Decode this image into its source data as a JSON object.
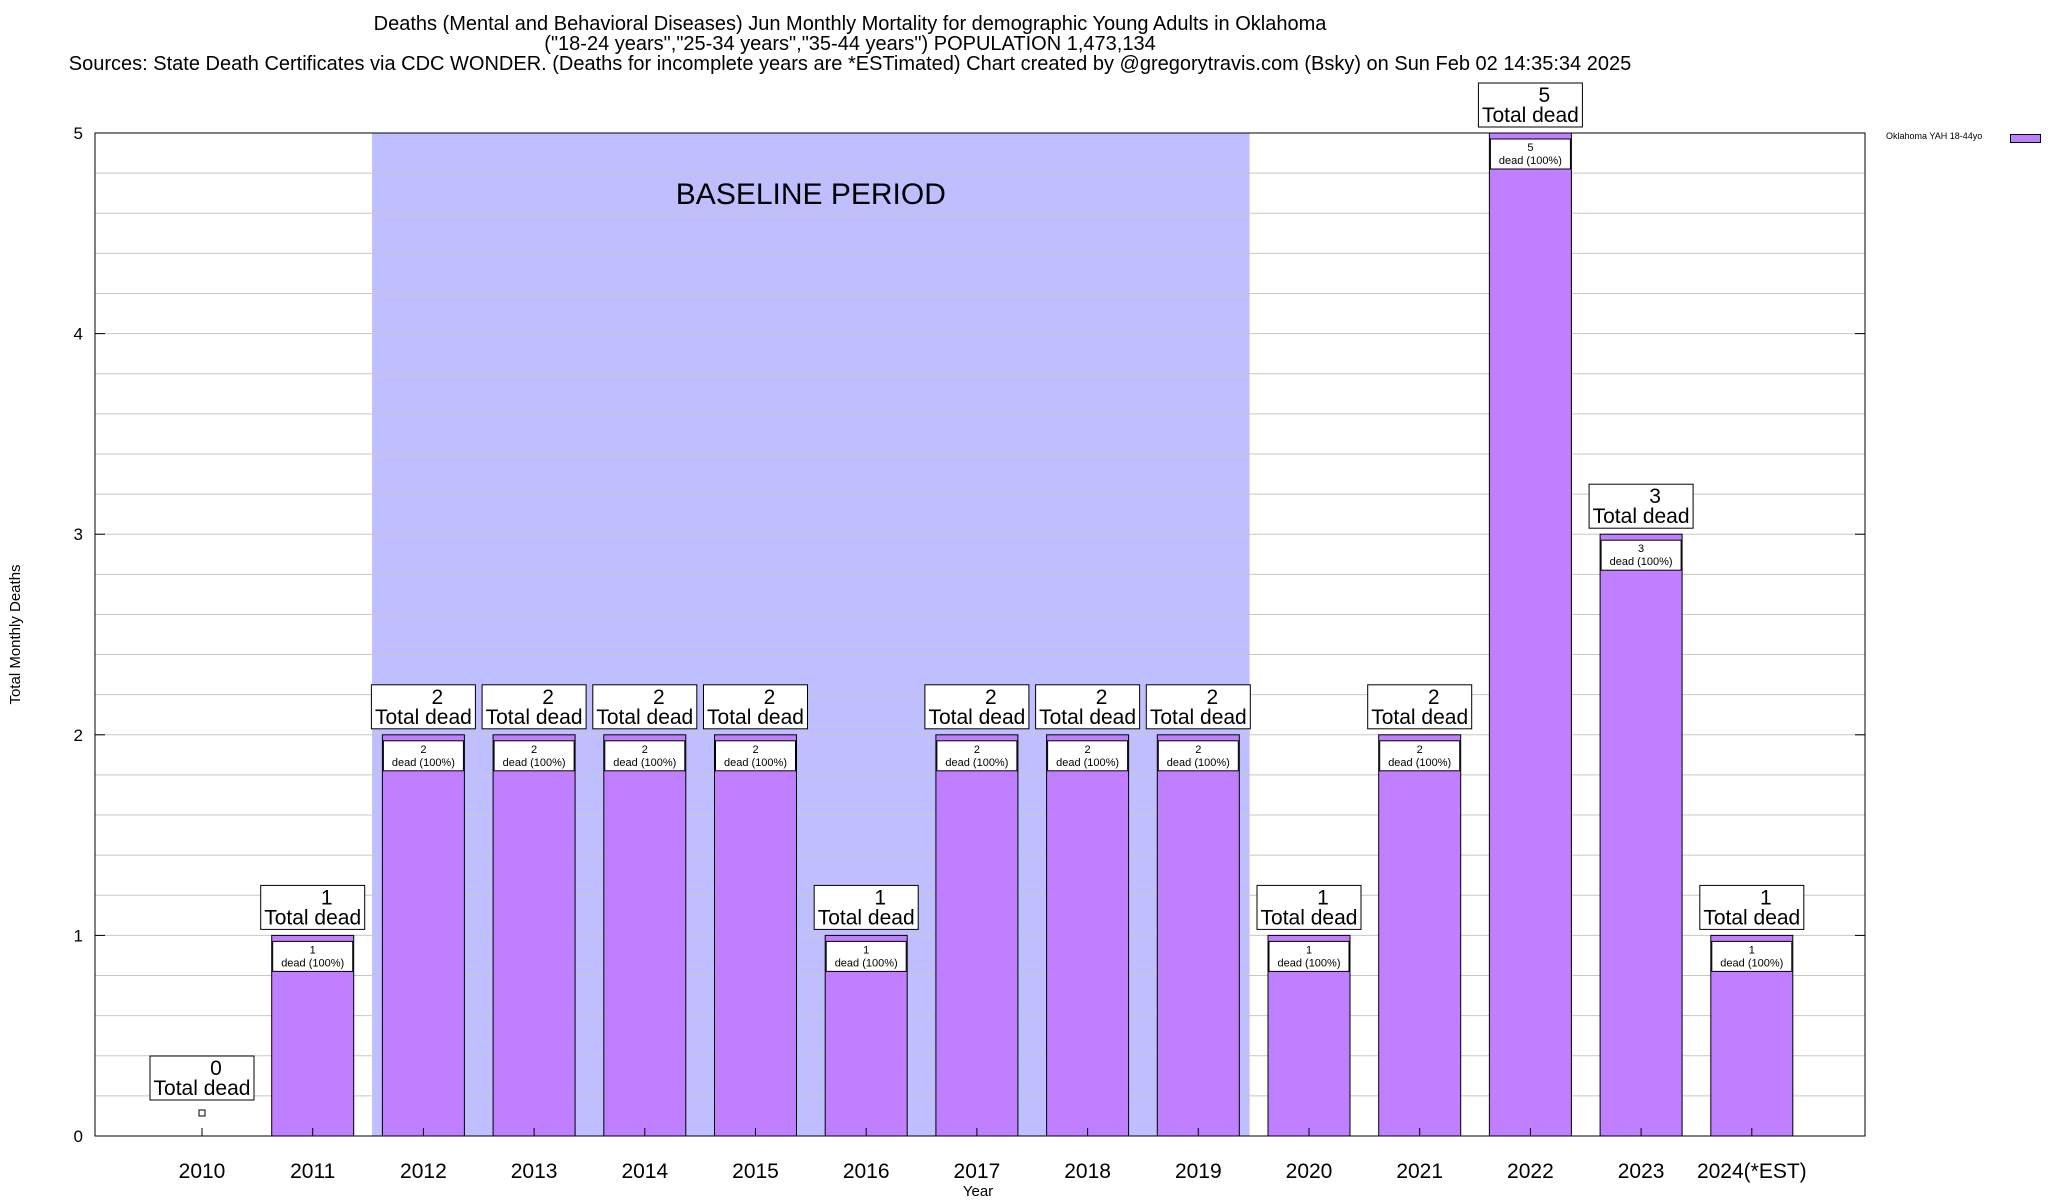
{
  "title": {
    "line1": "Deaths (Mental and Behavioral Diseases) Jun Monthly Mortality for demographic Young Adults in Oklahoma",
    "line2": "(\"18-24 years\",\"25-34 years\",\"35-44 years\") POPULATION 1,473,134",
    "line3": "Sources: State Death Certificates via CDC WONDER. (Deaths for incomplete years are *ESTimated)                 Chart created by @gregorytravis.com (Bsky) on Sun Feb 02 14:35:34 2025"
  },
  "legend": {
    "label": "Oklahoma YAH 18-44yo",
    "position": "top-right"
  },
  "colors": {
    "bar": "#bf7fff",
    "baseline": "#bfbfff",
    "grid": "#c8c8c8"
  },
  "chart_data": {
    "type": "bar",
    "xlabel": "Year",
    "ylabel": "Total Monthly Deaths",
    "ylim": [
      0,
      5
    ],
    "yticks": [
      "0",
      "1",
      "2",
      "3",
      "4",
      "5"
    ],
    "grid": true,
    "categories": [
      "2010",
      "2011",
      "2012",
      "2013",
      "2014",
      "2015",
      "2016",
      "2017",
      "2018",
      "2019",
      "2020",
      "2021",
      "2022",
      "2023",
      "2024(*EST)"
    ],
    "series": [
      {
        "name": "Oklahoma YAH 18-44yo",
        "values": [
          0,
          1,
          2,
          2,
          2,
          2,
          1,
          2,
          2,
          2,
          1,
          2,
          5,
          3,
          1
        ]
      }
    ],
    "total_label": "Total dead",
    "inner_label": "dead (100%)",
    "baseline": {
      "label": "BASELINE PERIOD",
      "from": "2012",
      "to": "2019"
    }
  }
}
